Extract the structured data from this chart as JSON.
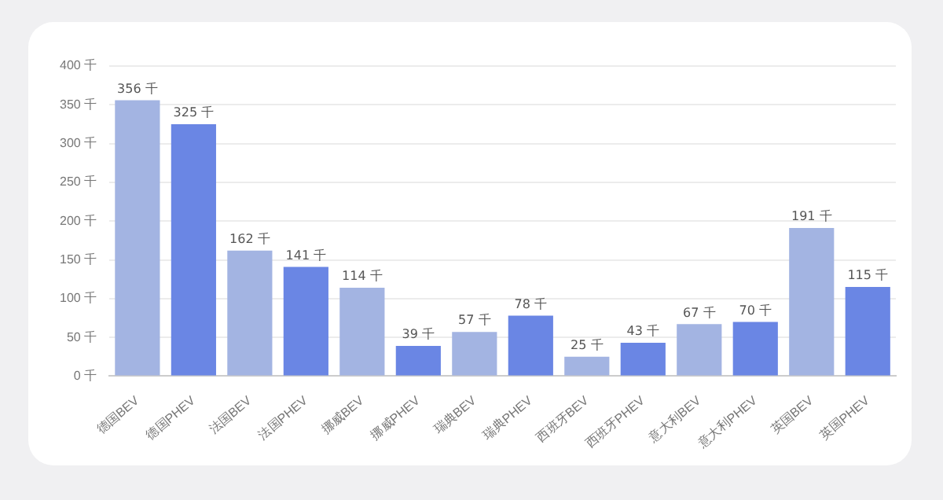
{
  "chart_data": {
    "type": "bar",
    "categories": [
      "德国BEV",
      "德国PHEV",
      "法国BEV",
      "法国PHEV",
      "挪威BEV",
      "挪威PHEV",
      "瑞典BEV",
      "瑞典PHEV",
      "西班牙BEV",
      "西班牙PHEV",
      "意大利BEV",
      "意大利PHEV",
      "英国BEV",
      "英国PHEV"
    ],
    "values": [
      356,
      325,
      162,
      141,
      114,
      39,
      57,
      78,
      25,
      43,
      67,
      70,
      191,
      115
    ],
    "colors": [
      "#a3b4e2",
      "#6a86e4",
      "#a3b4e2",
      "#6a86e4",
      "#a3b4e2",
      "#6a86e4",
      "#a3b4e2",
      "#6a86e4",
      "#a3b4e2",
      "#6a86e4",
      "#a3b4e2",
      "#6a86e4",
      "#a3b4e2",
      "#6a86e4"
    ],
    "value_labels": [
      "356 千",
      "325 千",
      "162 千",
      "141 千",
      "114 千",
      "39 千",
      "57 千",
      "78 千",
      "25 千",
      "43 千",
      "67 千",
      "70 千",
      "191 千",
      "115 千"
    ],
    "ylim": [
      0,
      400
    ],
    "yticks": [
      {
        "value": 0,
        "label": "0 千"
      },
      {
        "value": 50,
        "label": "50 千"
      },
      {
        "value": 100,
        "label": "100 千"
      },
      {
        "value": 150,
        "label": "150 千"
      },
      {
        "value": 200,
        "label": "200 千"
      },
      {
        "value": 250,
        "label": "250 千"
      },
      {
        "value": 300,
        "label": "300 千"
      },
      {
        "value": 350,
        "label": "350 千"
      },
      {
        "value": 400,
        "label": "400 千"
      }
    ],
    "grid": "y",
    "legend": false
  }
}
